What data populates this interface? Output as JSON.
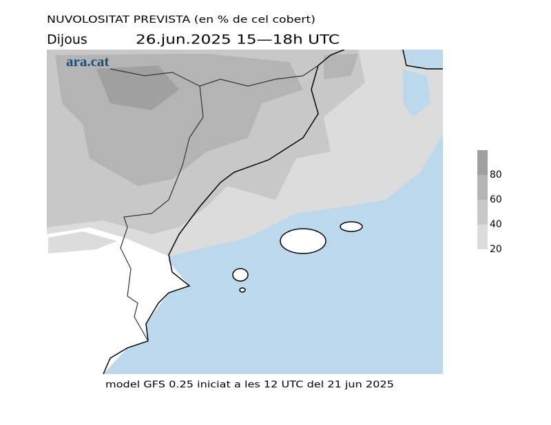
{
  "header": {
    "title": "NUVOLOSITAT PREVISTA (en % de cel cobert)",
    "day": "Dijous",
    "period": "26.jun.2025 15—18h UTC"
  },
  "logo": "ara.cat",
  "footer": "model GFS 0.25 iniciat a les 12 UTC del 21 jun 2025",
  "legend": {
    "range": [
      20,
      100
    ],
    "ticks": [
      20,
      40,
      60,
      80
    ],
    "colors": [
      "#dcdcdc",
      "#c8c8c8",
      "#b4b4b4",
      "#a0a0a0"
    ]
  }
}
